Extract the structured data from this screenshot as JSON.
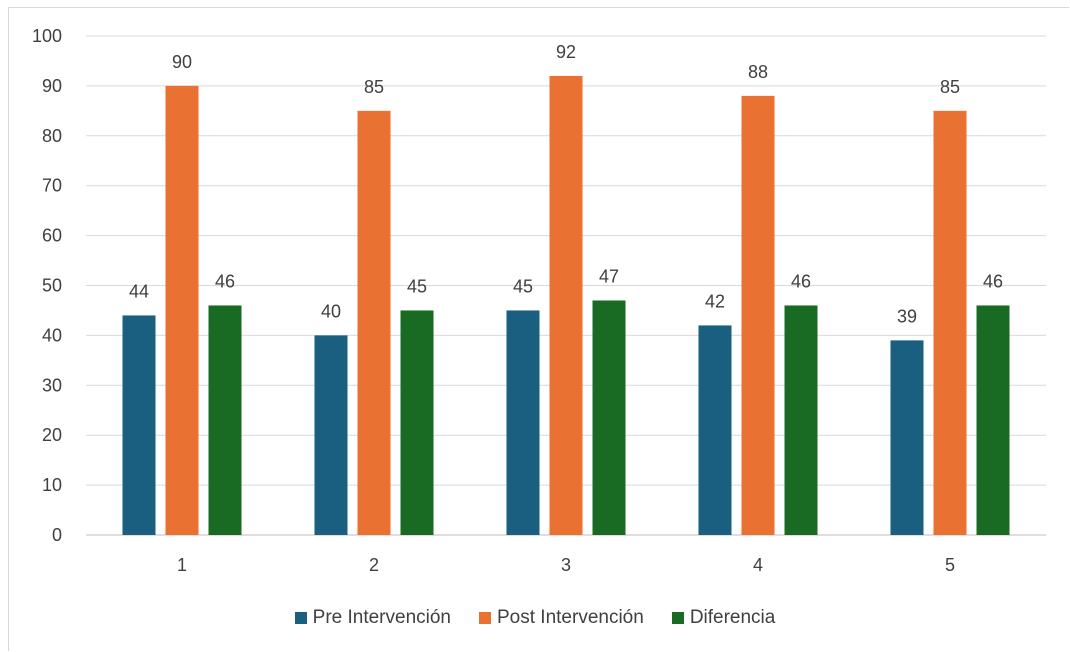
{
  "chart_data": {
    "type": "bar",
    "title": "",
    "xlabel": "",
    "ylabel": "",
    "categories": [
      "1",
      "2",
      "3",
      "4",
      "5"
    ],
    "ylim": [
      0,
      100
    ],
    "yticks": [
      "0",
      "10",
      "20",
      "30",
      "40",
      "50",
      "60",
      "70",
      "80",
      "90",
      "100"
    ],
    "grid": true,
    "legend_position": "bottom",
    "series": [
      {
        "name": "Pre Intervención",
        "color": "#1a5e80",
        "values": [
          44,
          40,
          45,
          42,
          39
        ]
      },
      {
        "name": "Post Intervención",
        "color": "#e97132",
        "values": [
          90,
          85,
          92,
          88,
          85
        ]
      },
      {
        "name": "Diferencia",
        "color": "#196b24",
        "values": [
          46,
          45,
          47,
          46,
          46
        ]
      }
    ]
  }
}
